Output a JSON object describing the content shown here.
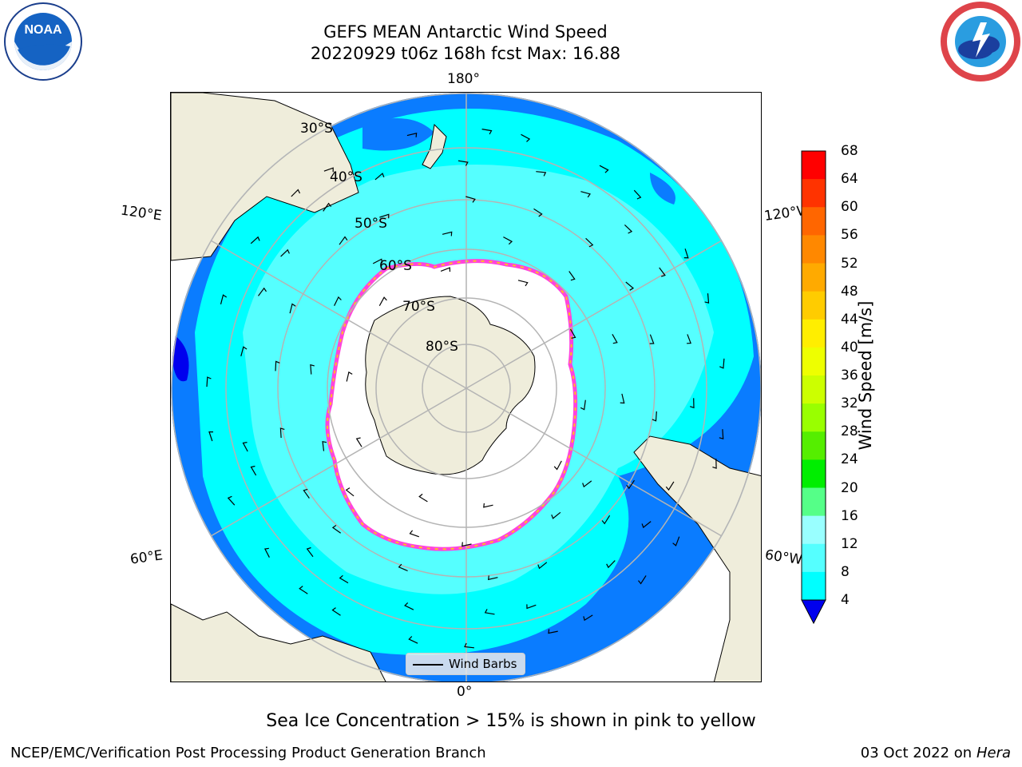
{
  "header": {
    "title_line1": "GEFS MEAN Antarctic Wind Speed",
    "title_line2": "20220929 t06z 168h fcst   Max: 16.88"
  },
  "logos": {
    "left": "noaa-logo",
    "right": "national-weather-service-logo"
  },
  "map": {
    "projection": "south-polar-stereographic",
    "longitude_labels": {
      "top": "180°",
      "bottom": "0°",
      "upper_left": "120°E",
      "lower_left": "60°E",
      "upper_right": "120°W",
      "lower_right": "60°W"
    },
    "latitude_labels": [
      "30°S",
      "40°S",
      "50°S",
      "60°S",
      "70°S",
      "80°S"
    ],
    "legend": {
      "label": "Wind Barbs"
    },
    "colors": {
      "land": "#efeddb",
      "ocean_low": "#0a7cff",
      "ocean_mid": "#00ffff",
      "ocean_high": "#55ffff",
      "sea_ice_edge_pink": "#ff44dd",
      "sea_ice_edge_yellow": "#ffc020",
      "grid": "#b4b4b4"
    }
  },
  "colorbar": {
    "label": "Wind Speed [m/s]",
    "ticks": [
      "68",
      "64",
      "60",
      "56",
      "52",
      "48",
      "44",
      "40",
      "36",
      "32",
      "28",
      "24",
      "20",
      "16",
      "12",
      "8",
      "4"
    ],
    "colors": [
      "#ff0000",
      "#ff3300",
      "#ff6600",
      "#ff8800",
      "#ffaa00",
      "#ffcc00",
      "#ffee00",
      "#eeff00",
      "#ccff00",
      "#99ff00",
      "#55ee00",
      "#00ee00",
      "#55ff88",
      "#99ffff",
      "#55ffff",
      "#00ffff",
      "#0a7cff"
    ],
    "extend_color": "#0000ee"
  },
  "caption": "Sea Ice Concentration > 15% is shown in pink to yellow",
  "footer": {
    "left": "NCEP/EMC/Verification Post Processing Product Generation Branch",
    "right_date": "03 Oct 2022 on ",
    "right_machine": "Hera"
  }
}
